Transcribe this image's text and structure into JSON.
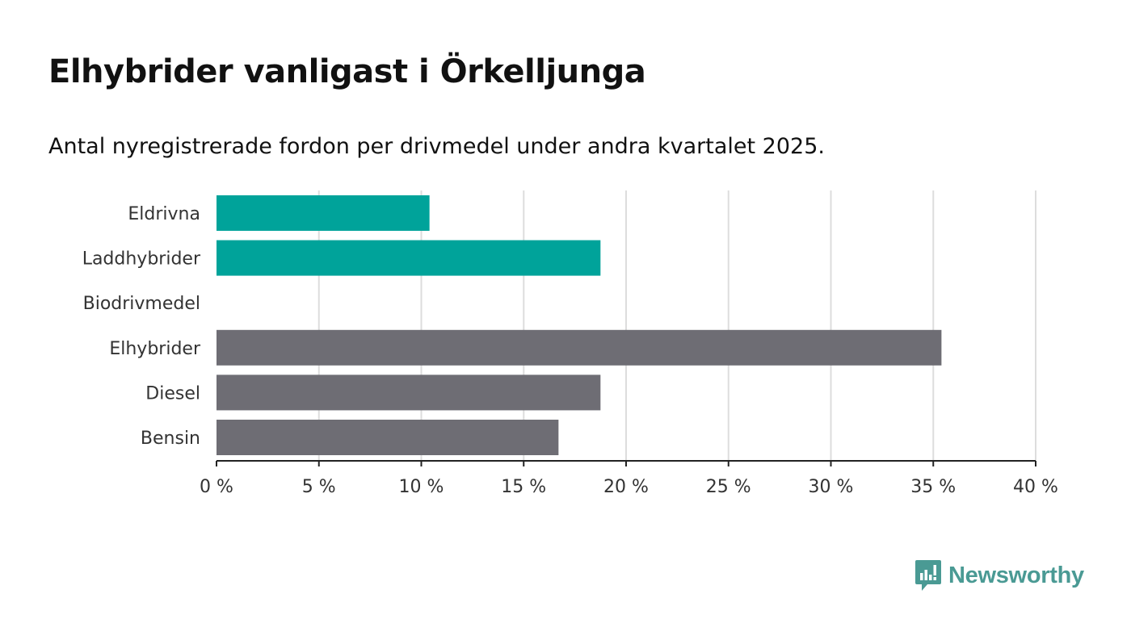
{
  "chart_data": {
    "type": "bar",
    "orientation": "horizontal",
    "title": "Elhybrider vanligast i Örkelljunga",
    "subtitle": "Antal nyregistrerade fordon per drivmedel under andra kvartalet 2025.",
    "categories": [
      "Eldrivna",
      "Laddhybrider",
      "Biodrivmedel",
      "Elhybrider",
      "Diesel",
      "Bensin"
    ],
    "values": [
      10.4,
      18.75,
      0,
      35.4,
      18.75,
      16.7
    ],
    "colors": [
      "#00a39a",
      "#00a39a",
      "#00a39a",
      "#6e6d74",
      "#6e6d74",
      "#6e6d74"
    ],
    "xlim": [
      0,
      40
    ],
    "xticks": [
      0,
      5,
      10,
      15,
      20,
      25,
      30,
      35,
      40
    ],
    "tick_labels": [
      "0 %",
      "5 %",
      "10 %",
      "15 %",
      "20 %",
      "25 %",
      "30 %",
      "35 %",
      "40 %"
    ],
    "grid": "vertical",
    "xlabel": "",
    "ylabel": ""
  },
  "brand": {
    "name": "Newsworthy",
    "icon": "newsworthy-logo-icon",
    "color": "#4a9a94"
  }
}
